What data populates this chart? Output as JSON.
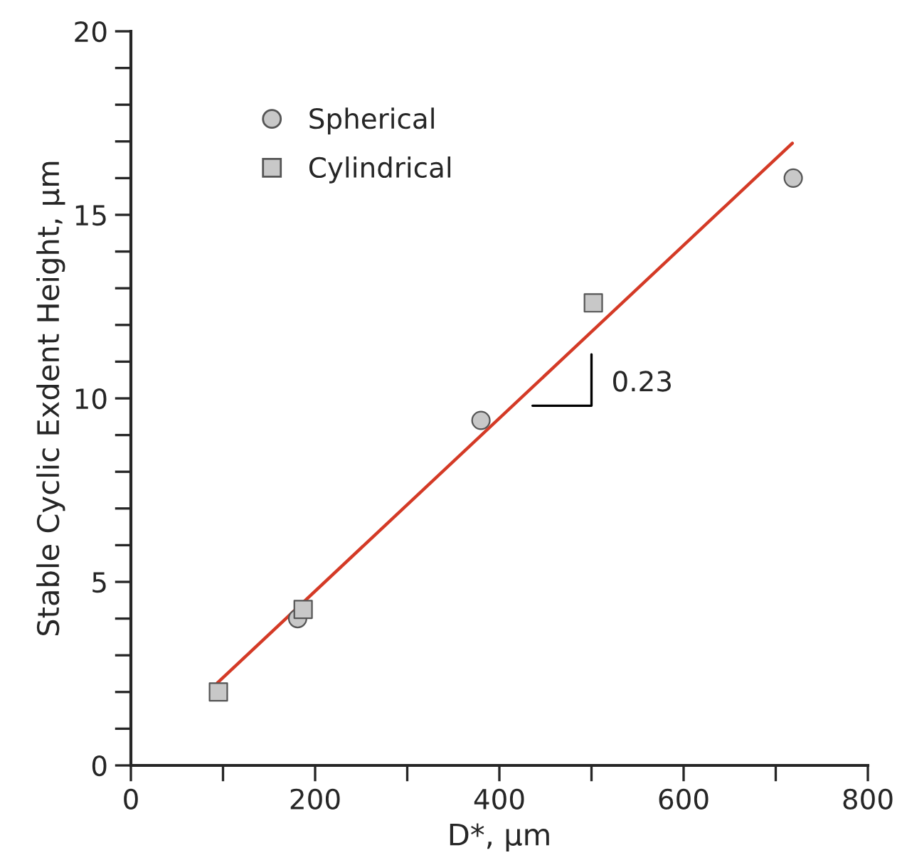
{
  "chart_data": {
    "type": "scatter",
    "xlabel": "D*, µm",
    "ylabel": "Stable Cyclic Exdent Height, µm",
    "xlim": [
      0,
      800
    ],
    "ylim": [
      0,
      20
    ],
    "xticks": [
      0,
      {
        "value": 100,
        "label": null
      },
      200,
      {
        "value": 300,
        "label": null
      },
      400,
      {
        "value": 500,
        "label": null
      },
      600,
      {
        "value": 700,
        "label": null
      },
      800
    ],
    "yticks": [
      0,
      {
        "value": 1,
        "label": null
      },
      {
        "value": 2,
        "label": null
      },
      {
        "value": 3,
        "label": null
      },
      {
        "value": 4,
        "label": null
      },
      5,
      {
        "value": 6,
        "label": null
      },
      {
        "value": 7,
        "label": null
      },
      {
        "value": 8,
        "label": null
      },
      {
        "value": 9,
        "label": null
      },
      10,
      {
        "value": 11,
        "label": null
      },
      {
        "value": 12,
        "label": null
      },
      {
        "value": 13,
        "label": null
      },
      {
        "value": 14,
        "label": null
      },
      15,
      {
        "value": 16,
        "label": null
      },
      {
        "value": 17,
        "label": null
      },
      {
        "value": 18,
        "label": null
      },
      {
        "value": 19,
        "label": null
      },
      20
    ],
    "grid": false,
    "legend": "top left",
    "annotations": [
      "0.23"
    ],
    "series": [
      {
        "name": "Spherical",
        "marker": "circle",
        "color": "#c8c8c8",
        "x": [
          181,
          380,
          719
        ],
        "values": [
          4.0,
          9.4,
          16.0
        ]
      },
      {
        "name": "Cylindrical",
        "marker": "square",
        "color": "#c8c8c8",
        "x": [
          95,
          187,
          502
        ],
        "values": [
          2.0,
          4.25,
          12.6
        ]
      },
      {
        "type": "line",
        "marker": "none",
        "line_style": "solid",
        "color": "#d43a26",
        "x": [
          94,
          718
        ],
        "values": [
          2.25,
          16.95
        ]
      }
    ]
  }
}
